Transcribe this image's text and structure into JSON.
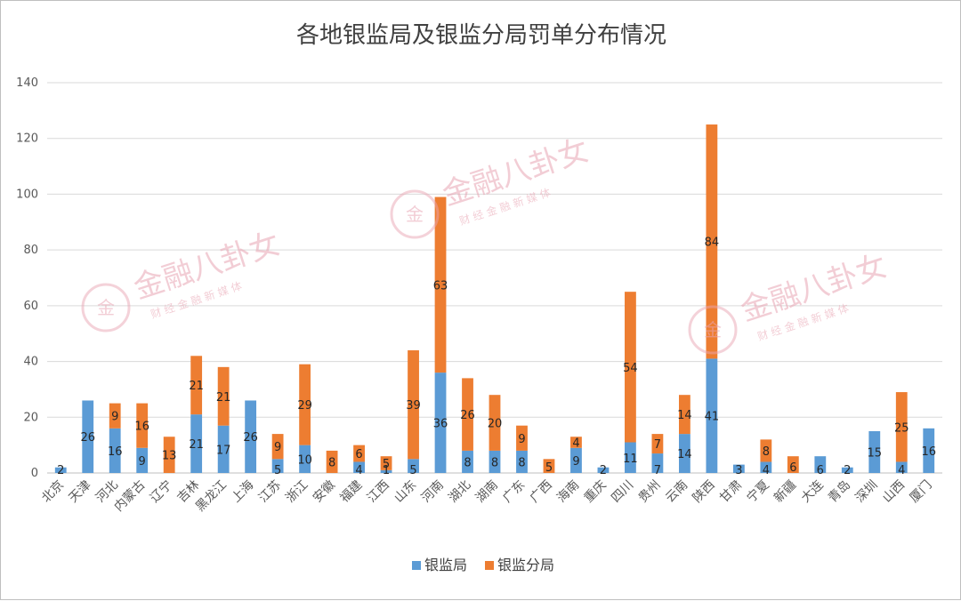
{
  "chart_data": {
    "type": "bar",
    "stacked": true,
    "title": "各地银监局及银监分局罚单分布情况",
    "xlabel": "",
    "ylabel": "",
    "ylim": [
      0,
      140
    ],
    "yticks": [
      0,
      20,
      40,
      60,
      80,
      100,
      120,
      140
    ],
    "grid": true,
    "legend_position": "bottom",
    "categories": [
      "北京",
      "天津",
      "河北",
      "内蒙古",
      "辽宁",
      "吉林",
      "黑龙江",
      "上海",
      "江苏",
      "浙江",
      "安徽",
      "福建",
      "江西",
      "山东",
      "河南",
      "湖北",
      "湖南",
      "广东",
      "广西",
      "海南",
      "重庆",
      "四川",
      "贵州",
      "云南",
      "陕西",
      "甘肃",
      "宁夏",
      "新疆",
      "大连",
      "青岛",
      "深圳",
      "山西",
      "厦门"
    ],
    "series": [
      {
        "name": "银监局",
        "color": "#5b9bd5",
        "values": [
          2,
          26,
          16,
          9,
          0,
          21,
          17,
          26,
          5,
          10,
          0,
          4,
          1,
          5,
          36,
          8,
          8,
          8,
          0,
          9,
          2,
          11,
          7,
          14,
          41,
          3,
          4,
          0,
          6,
          2,
          15,
          4,
          16
        ]
      },
      {
        "name": "银监分局",
        "color": "#ed7d31",
        "values": [
          0,
          0,
          9,
          16,
          13,
          21,
          21,
          0,
          9,
          29,
          8,
          6,
          5,
          39,
          63,
          26,
          20,
          9,
          5,
          4,
          0,
          54,
          7,
          14,
          84,
          0,
          8,
          6,
          0,
          0,
          0,
          25,
          0
        ]
      }
    ],
    "data_labels": {
      "银监局": [
        "2",
        "26",
        "16",
        "9",
        "",
        "21",
        "17",
        "26",
        "5",
        "10",
        "",
        "4",
        "1",
        "5",
        "36",
        "8",
        "8",
        "8",
        "",
        "9",
        "2",
        "11",
        "7",
        "14",
        "41",
        "3",
        "4",
        "",
        "6",
        "2",
        "15",
        "4",
        "16"
      ],
      "银监分局": [
        "",
        "",
        "9",
        "16",
        "13",
        "21",
        "21",
        "",
        "9",
        "29",
        "8",
        "6",
        "5",
        "39",
        "63",
        "26",
        "20",
        "9",
        "5",
        "4",
        "",
        "54",
        "7",
        "14",
        "84",
        "",
        "8",
        "6",
        "",
        "",
        "",
        "25",
        ""
      ]
    }
  },
  "watermark": {
    "brand": "金融八卦女",
    "tagline": "财 经 金 融 新 媒 体",
    "logo_glyph": "金"
  }
}
